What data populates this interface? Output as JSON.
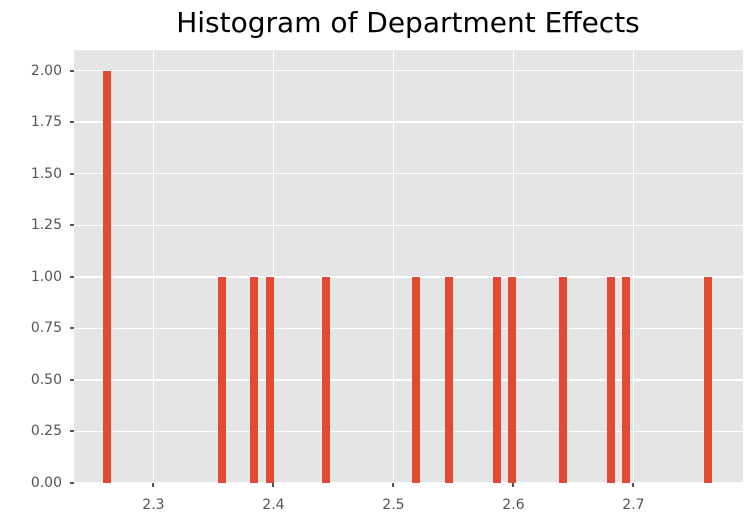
{
  "chart_data": {
    "type": "bar",
    "subtype": "histogram",
    "title": "Histogram of Department Effects",
    "xlabel": "",
    "ylabel": "",
    "xlim": [
      2.2338,
      2.7913
    ],
    "ylim": [
      0,
      2.1
    ],
    "grid": true,
    "legend": false,
    "bar_width": 0.0067,
    "bars": [
      {
        "x": 2.261,
        "count": 2
      },
      {
        "x": 2.357,
        "count": 1
      },
      {
        "x": 2.384,
        "count": 1
      },
      {
        "x": 2.397,
        "count": 1
      },
      {
        "x": 2.444,
        "count": 1
      },
      {
        "x": 2.519,
        "count": 1
      },
      {
        "x": 2.546,
        "count": 1
      },
      {
        "x": 2.586,
        "count": 1
      },
      {
        "x": 2.599,
        "count": 1
      },
      {
        "x": 2.641,
        "count": 1
      },
      {
        "x": 2.681,
        "count": 1
      },
      {
        "x": 2.694,
        "count": 1
      },
      {
        "x": 2.762,
        "count": 1
      }
    ],
    "xticks": [
      {
        "value": 2.3,
        "label": "2.3"
      },
      {
        "value": 2.4,
        "label": "2.4"
      },
      {
        "value": 2.5,
        "label": "2.5"
      },
      {
        "value": 2.6,
        "label": "2.6"
      },
      {
        "value": 2.7,
        "label": "2.7"
      }
    ],
    "yticks": [
      {
        "value": 0.0,
        "label": "0.00"
      },
      {
        "value": 0.25,
        "label": "0.25"
      },
      {
        "value": 0.5,
        "label": "0.50"
      },
      {
        "value": 0.75,
        "label": "0.75"
      },
      {
        "value": 1.0,
        "label": "1.00"
      },
      {
        "value": 1.25,
        "label": "1.25"
      },
      {
        "value": 1.5,
        "label": "1.50"
      },
      {
        "value": 1.75,
        "label": "1.75"
      },
      {
        "value": 2.0,
        "label": "2.00"
      }
    ],
    "colors": {
      "bar": "#E24A33",
      "plot_background": "#E5E5E5",
      "grid": "#FFFFFF",
      "tick": "#555555",
      "tick_label": "#555555",
      "title": "#000000",
      "figure_background": "#FFFFFF"
    }
  }
}
